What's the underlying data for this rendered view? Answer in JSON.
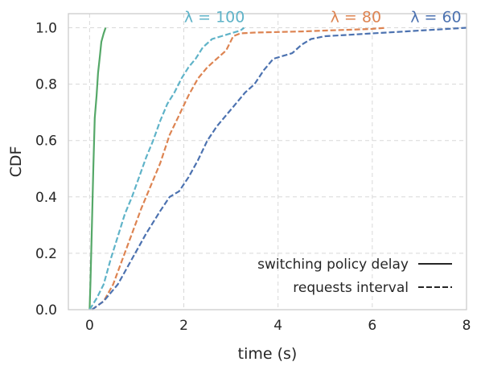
{
  "chart_data": {
    "type": "line",
    "xlabel": "time (s)",
    "ylabel": "CDF",
    "xlim": [
      -0.45,
      8
    ],
    "ylim": [
      0,
      1.05
    ],
    "xticks": [
      0,
      2,
      4,
      6,
      8
    ],
    "yticks": [
      0.0,
      0.2,
      0.4,
      0.6,
      0.8,
      1.0
    ],
    "xtick_labels": [
      "0",
      "2",
      "4",
      "6",
      "8"
    ],
    "ytick_labels": [
      "0.0",
      "0.2",
      "0.4",
      "0.6",
      "0.8",
      "1.0"
    ],
    "grid": true,
    "legend": {
      "placement": "bottom-right",
      "entries": [
        {
          "label": "switching policy delay",
          "style": "solid"
        },
        {
          "label": "requests interval",
          "style": "dashed"
        }
      ]
    },
    "annotations": [
      {
        "text": "λ = 100",
        "x": 2.65,
        "y": 1.02,
        "color": "#5fb3c8"
      },
      {
        "text": "λ = 80",
        "x": 5.65,
        "y": 1.02,
        "color": "#dd8452"
      },
      {
        "text": "λ = 60",
        "x": 7.35,
        "y": 1.02,
        "color": "#4c72b0"
      }
    ],
    "series": [
      {
        "style": "solid",
        "color": "#55a868",
        "x": [
          0.0,
          0.02,
          0.05,
          0.08,
          0.11,
          0.15,
          0.18,
          0.22,
          0.25,
          0.3,
          0.34
        ],
        "y": [
          0.0,
          0.1,
          0.3,
          0.5,
          0.68,
          0.76,
          0.84,
          0.9,
          0.95,
          0.98,
          1.0
        ]
      },
      {
        "style": "dashed",
        "color": "#5fb3c8",
        "x": [
          0.0,
          0.15,
          0.3,
          0.45,
          0.6,
          0.75,
          0.9,
          1.05,
          1.2,
          1.35,
          1.5,
          1.65,
          1.8,
          1.95,
          2.1,
          2.25,
          2.4,
          2.6,
          2.8,
          3.0,
          3.2,
          3.28
        ],
        "y": [
          0.0,
          0.04,
          0.09,
          0.18,
          0.26,
          0.34,
          0.4,
          0.47,
          0.54,
          0.6,
          0.67,
          0.73,
          0.77,
          0.82,
          0.86,
          0.89,
          0.93,
          0.96,
          0.97,
          0.98,
          0.99,
          1.0
        ]
      },
      {
        "style": "dashed",
        "color": "#dd8452",
        "x": [
          0.05,
          0.3,
          0.5,
          0.7,
          0.9,
          1.1,
          1.3,
          1.5,
          1.7,
          1.9,
          2.1,
          2.3,
          2.5,
          2.7,
          2.9,
          3.05,
          3.2,
          3.5,
          4.0,
          4.5,
          5.0,
          5.5,
          6.0,
          6.3
        ],
        "y": [
          0.0,
          0.03,
          0.09,
          0.18,
          0.27,
          0.36,
          0.44,
          0.52,
          0.62,
          0.69,
          0.76,
          0.82,
          0.86,
          0.89,
          0.92,
          0.97,
          0.98,
          0.983,
          0.985,
          0.987,
          0.99,
          0.993,
          0.996,
          1.0
        ]
      },
      {
        "style": "dashed",
        "color": "#4c72b0",
        "x": [
          0.05,
          0.3,
          0.6,
          0.9,
          1.2,
          1.5,
          1.7,
          1.9,
          2.1,
          2.3,
          2.5,
          2.7,
          2.9,
          3.1,
          3.3,
          3.5,
          3.7,
          3.9,
          4.1,
          4.3,
          4.5,
          4.7,
          5.0,
          5.5,
          6.0,
          6.5,
          7.0,
          7.5,
          8.0
        ],
        "y": [
          0.0,
          0.03,
          0.09,
          0.18,
          0.27,
          0.35,
          0.4,
          0.42,
          0.47,
          0.53,
          0.6,
          0.65,
          0.69,
          0.73,
          0.77,
          0.8,
          0.85,
          0.89,
          0.9,
          0.91,
          0.94,
          0.96,
          0.97,
          0.975,
          0.98,
          0.985,
          0.99,
          0.995,
          1.0
        ]
      }
    ]
  }
}
